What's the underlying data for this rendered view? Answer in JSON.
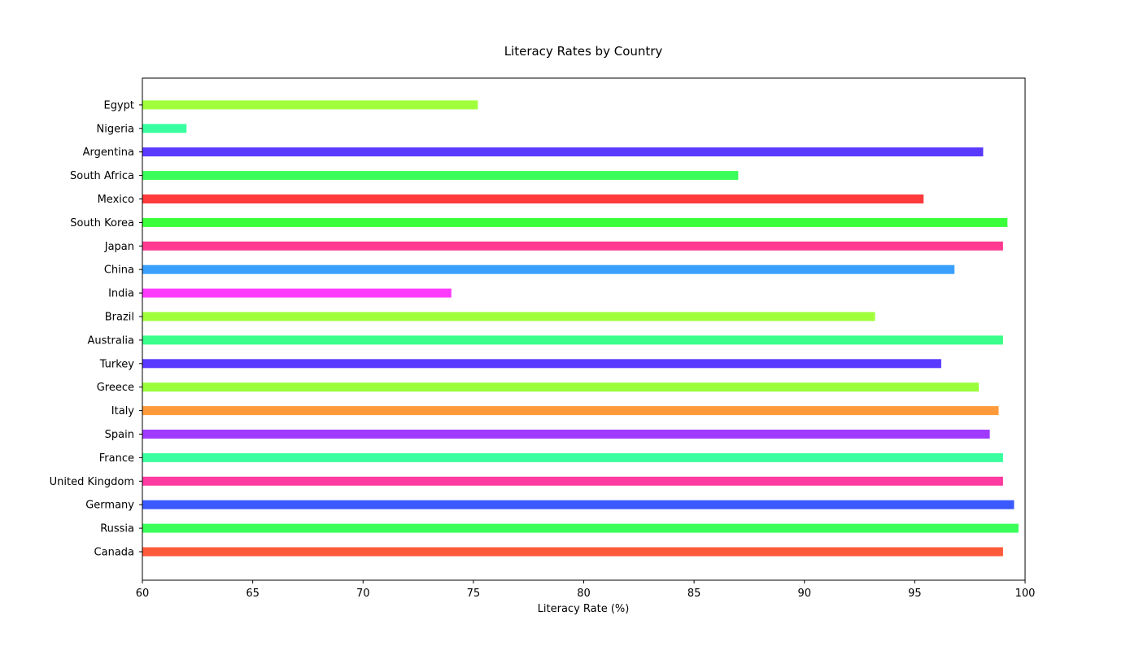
{
  "chart_data": {
    "type": "bar",
    "orientation": "horizontal",
    "title": "Literacy Rates by Country",
    "xlabel": "Literacy Rate (%)",
    "ylabel": "",
    "xlim": [
      60,
      100
    ],
    "xticks": [
      "60",
      "65",
      "70",
      "75",
      "80",
      "85",
      "90",
      "95",
      "100"
    ],
    "grid": false,
    "legend": "none",
    "categories": [
      "Canada",
      "Russia",
      "Germany",
      "United Kingdom",
      "France",
      "Spain",
      "Italy",
      "Greece",
      "Turkey",
      "Australia",
      "Brazil",
      "India",
      "China",
      "Japan",
      "South Korea",
      "Mexico",
      "South Africa",
      "Argentina",
      "Nigeria",
      "Egypt"
    ],
    "values": [
      99,
      99.7,
      99.5,
      99,
      99,
      98.4,
      98.8,
      97.9,
      96.2,
      99,
      93.2,
      74,
      96.8,
      99,
      99.2,
      95.4,
      87,
      98.1,
      62,
      75.2
    ],
    "colors": [
      "#ff5a3a",
      "#3aff5a",
      "#3a5aff",
      "#ff3aa0",
      "#3affa0",
      "#a03aff",
      "#ff9a3a",
      "#9aff3a",
      "#5a3aff",
      "#3aff8a",
      "#a0ff3a",
      "#ff3aff",
      "#3aa0ff",
      "#ff3a90",
      "#3aff3a",
      "#ff3a3a",
      "#3aff5a",
      "#5a3aff",
      "#3affa0",
      "#a0ff3a"
    ]
  }
}
